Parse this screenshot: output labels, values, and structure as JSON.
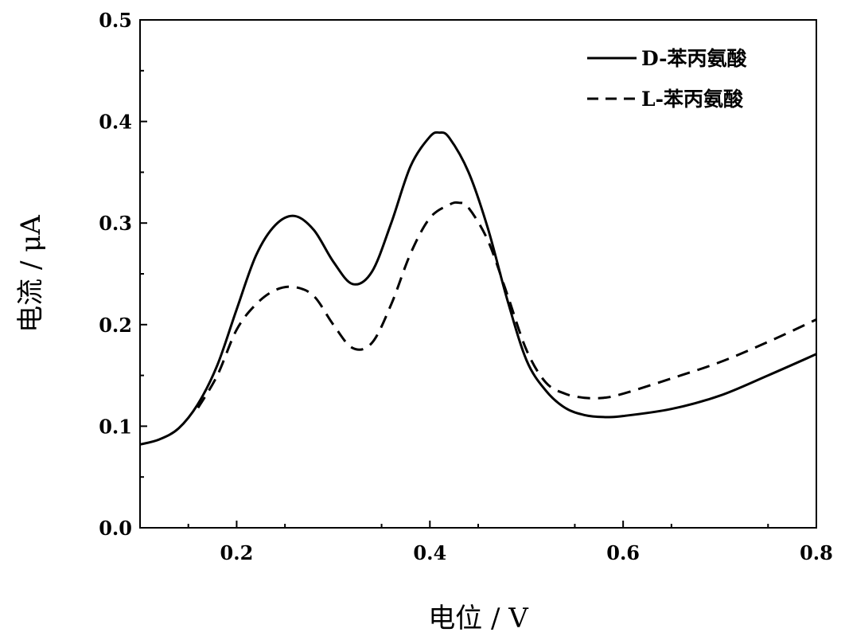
{
  "chart_data": {
    "type": "line",
    "title": "",
    "xlabel": "电位 / V",
    "ylabel": "电流 / μA",
    "xlim": [
      0.1,
      0.8
    ],
    "ylim": [
      0.0,
      0.5
    ],
    "x_ticks": [
      "0.2",
      "0.4",
      "0.6",
      "0.8"
    ],
    "y_ticks": [
      "0.0",
      "0.1",
      "0.2",
      "0.3",
      "0.4",
      "0.5"
    ],
    "grid": false,
    "legend_position": "top-right",
    "series": [
      {
        "name": "D-苯丙氨酸",
        "style": "solid",
        "color": "#000000",
        "x": [
          0.1,
          0.12,
          0.14,
          0.16,
          0.18,
          0.2,
          0.22,
          0.24,
          0.26,
          0.28,
          0.3,
          0.32,
          0.34,
          0.36,
          0.38,
          0.4,
          0.41,
          0.42,
          0.44,
          0.46,
          0.48,
          0.5,
          0.52,
          0.54,
          0.56,
          0.58,
          0.6,
          0.65,
          0.7,
          0.75,
          0.8
        ],
        "y": [
          0.082,
          0.087,
          0.098,
          0.122,
          0.16,
          0.215,
          0.268,
          0.298,
          0.307,
          0.293,
          0.262,
          0.24,
          0.252,
          0.3,
          0.356,
          0.385,
          0.389,
          0.384,
          0.35,
          0.295,
          0.225,
          0.165,
          0.135,
          0.118,
          0.111,
          0.109,
          0.11,
          0.117,
          0.13,
          0.15,
          0.171
        ]
      },
      {
        "name": "L-苯丙氨酸",
        "style": "dashed",
        "color": "#000000",
        "x": [
          0.16,
          0.18,
          0.2,
          0.22,
          0.24,
          0.26,
          0.28,
          0.3,
          0.32,
          0.34,
          0.36,
          0.38,
          0.4,
          0.42,
          0.43,
          0.44,
          0.46,
          0.48,
          0.5,
          0.52,
          0.54,
          0.56,
          0.58,
          0.6,
          0.65,
          0.7,
          0.75,
          0.8
        ],
        "y": [
          0.118,
          0.15,
          0.195,
          0.22,
          0.234,
          0.237,
          0.228,
          0.2,
          0.177,
          0.182,
          0.22,
          0.27,
          0.305,
          0.318,
          0.32,
          0.315,
          0.283,
          0.23,
          0.175,
          0.143,
          0.132,
          0.128,
          0.128,
          0.132,
          0.147,
          0.163,
          0.183,
          0.205
        ]
      }
    ]
  }
}
